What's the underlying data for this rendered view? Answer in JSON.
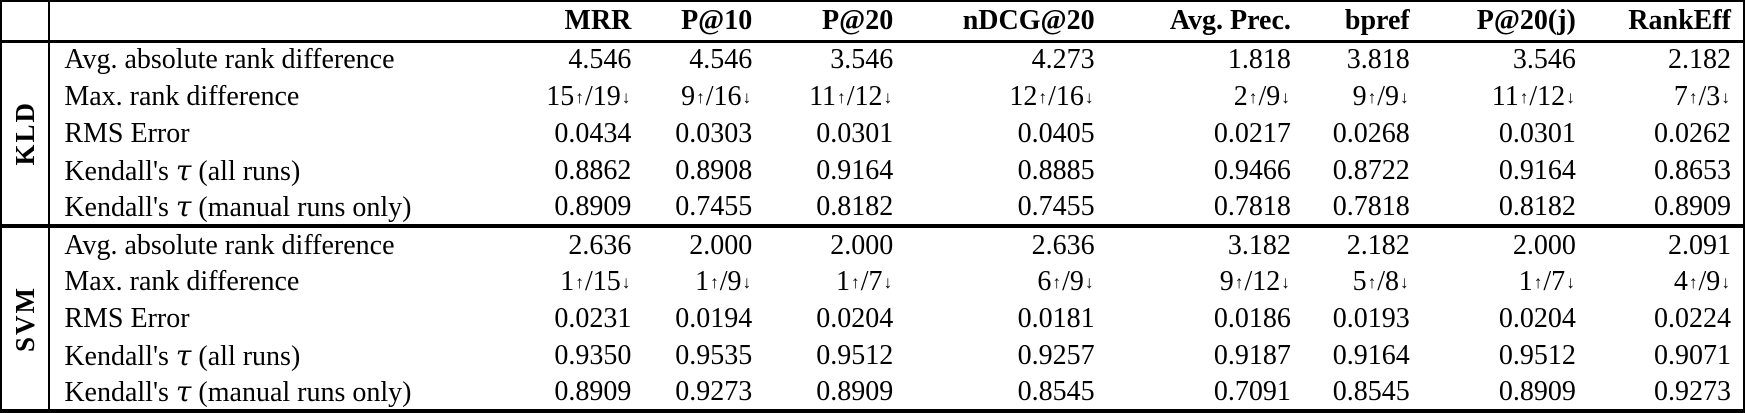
{
  "table": {
    "column_headers": [
      "MRR",
      "P@10",
      "P@20",
      "nDCG@20",
      "Avg. Prec.",
      "bpref",
      "P@20(j)",
      "RankEff"
    ],
    "groups": [
      {
        "label": "KLD",
        "rows": [
          {
            "label": "Avg. absolute rank difference",
            "values": [
              "4.546",
              "4.546",
              "3.546",
              "4.273",
              "1.818",
              "3.818",
              "3.546",
              "2.182"
            ]
          },
          {
            "label": "Max. rank difference",
            "values": [
              "15↑/19↓",
              "9↑/16↓",
              "11↑/12↓",
              "12↑/16↓",
              "2↑/9↓",
              "9↑/9↓",
              "11↑/12↓",
              "7↑/3↓"
            ]
          },
          {
            "label": "RMS Error",
            "values": [
              "0.0434",
              "0.0303",
              "0.0301",
              "0.0405",
              "0.0217",
              "0.0268",
              "0.0301",
              "0.0262"
            ]
          },
          {
            "label": "Kendall's τ (all runs)",
            "values": [
              "0.8862",
              "0.8908",
              "0.9164",
              "0.8885",
              "0.9466",
              "0.8722",
              "0.9164",
              "0.8653"
            ]
          },
          {
            "label": "Kendall's τ (manual runs only)",
            "values": [
              "0.8909",
              "0.7455",
              "0.8182",
              "0.7455",
              "0.7818",
              "0.7818",
              "0.8182",
              "0.8909"
            ]
          }
        ]
      },
      {
        "label": "SVM",
        "rows": [
          {
            "label": "Avg. absolute rank difference",
            "values": [
              "2.636",
              "2.000",
              "2.000",
              "2.636",
              "3.182",
              "2.182",
              "2.000",
              "2.091"
            ]
          },
          {
            "label": "Max. rank difference",
            "values": [
              "1↑/15↓",
              "1↑/9↓",
              "1↑/7↓",
              "6↑/9↓",
              "9↑/12↓",
              "5↑/8↓",
              "1↑/7↓",
              "4↑/9↓"
            ]
          },
          {
            "label": "RMS Error",
            "values": [
              "0.0231",
              "0.0194",
              "0.0204",
              "0.0181",
              "0.0186",
              "0.0193",
              "0.0204",
              "0.0224"
            ]
          },
          {
            "label": "Kendall's τ (all runs)",
            "values": [
              "0.9350",
              "0.9535",
              "0.9512",
              "0.9257",
              "0.9187",
              "0.9164",
              "0.9512",
              "0.9071"
            ]
          },
          {
            "label": "Kendall's τ (manual runs only)",
            "values": [
              "0.8909",
              "0.9273",
              "0.8909",
              "0.8545",
              "0.7091",
              "0.8545",
              "0.8909",
              "0.9273"
            ]
          }
        ]
      }
    ]
  }
}
